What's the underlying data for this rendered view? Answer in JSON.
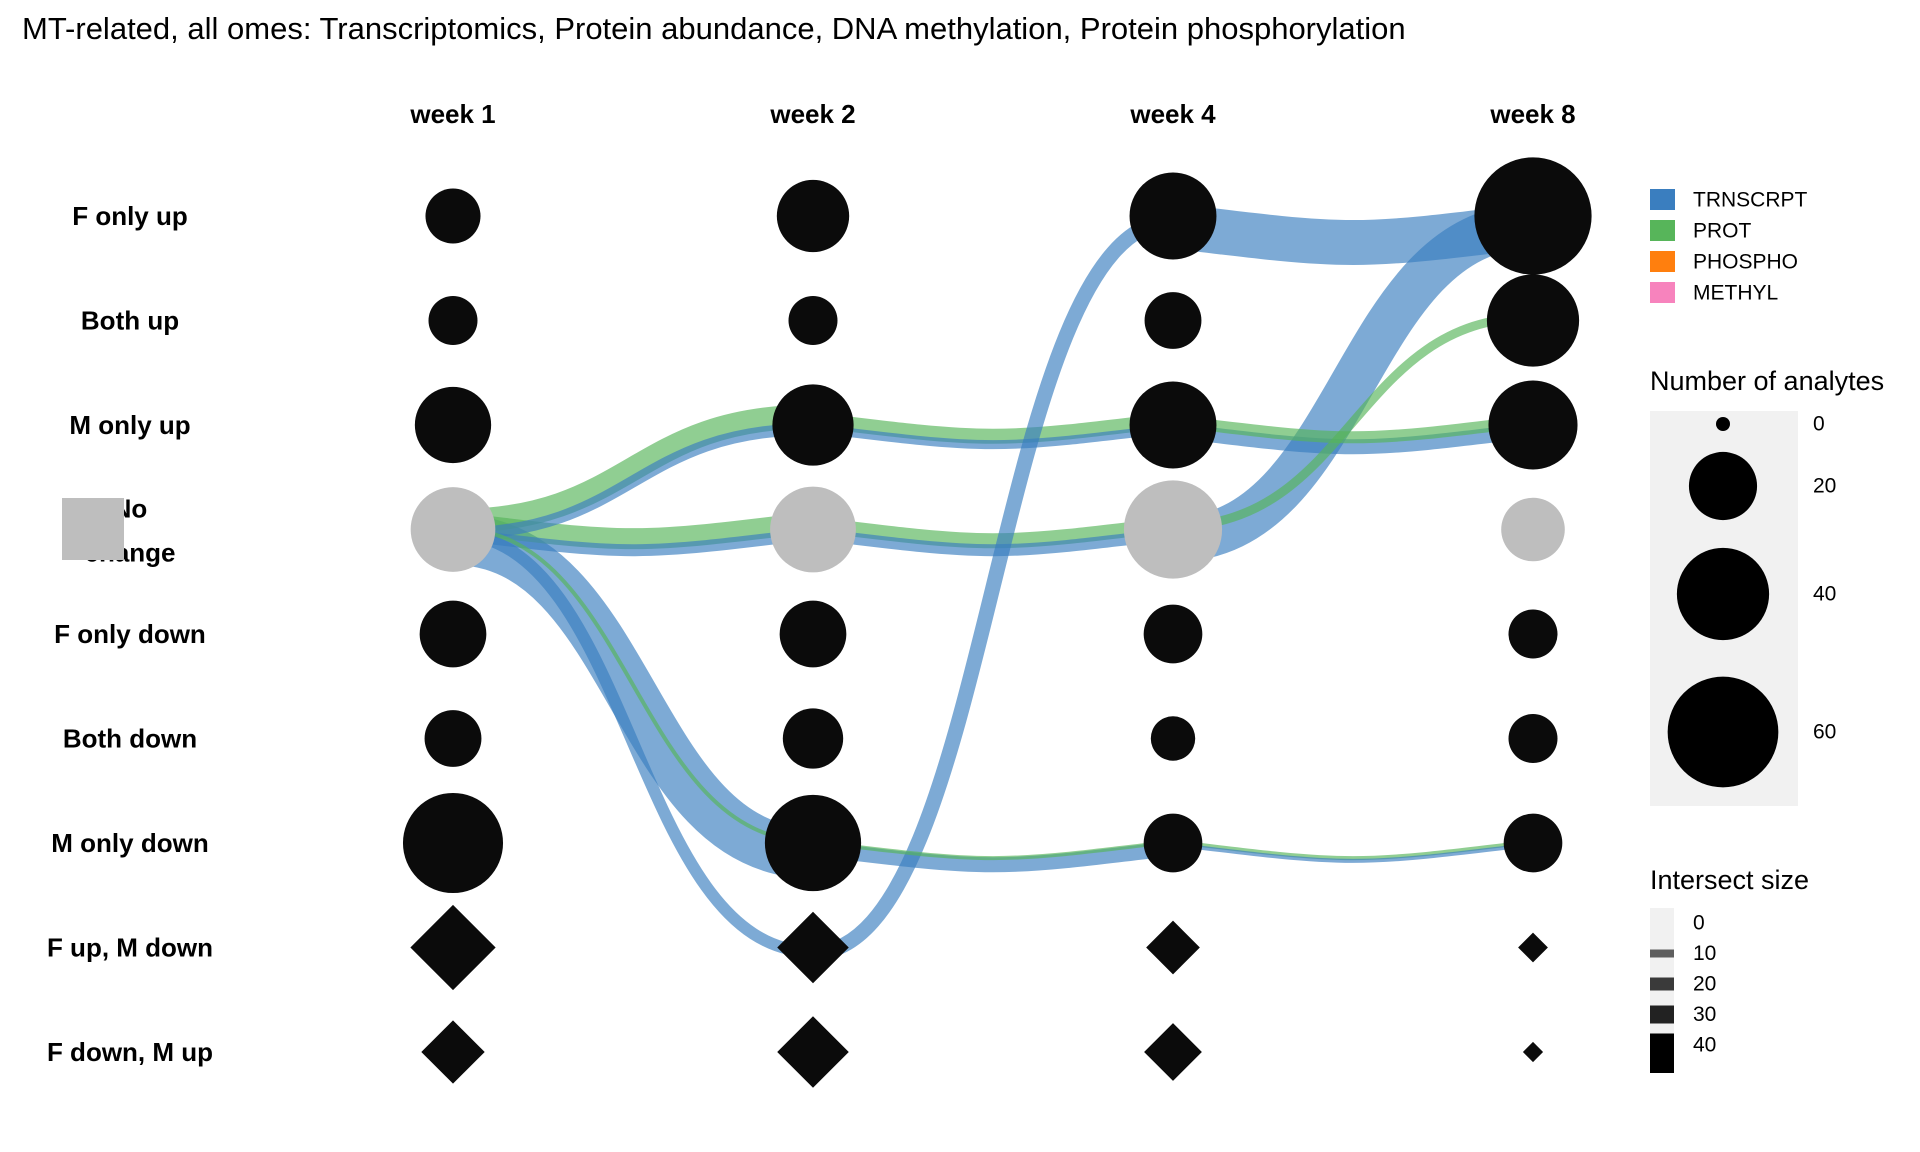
{
  "chart_data": {
    "type": "sankey-dot",
    "title": "MT-related, all omes: Transcriptomics, Protein abundance, DNA methylation, Protein phosphorylation",
    "columns": [
      "week 1",
      "week 2",
      "week 4",
      "week 8"
    ],
    "rows": [
      "F only up",
      "Both up",
      "M only up",
      "No change",
      "F only down",
      "Both down",
      "M only down",
      "F up, M down",
      "F down, M up"
    ],
    "row_label_lines": [
      [
        "F only up"
      ],
      [
        "Both up"
      ],
      [
        "M only up"
      ],
      [
        "No",
        "change"
      ],
      [
        "F only down"
      ],
      [
        "Both down"
      ],
      [
        "M only down"
      ],
      [
        "F up, M down"
      ],
      [
        "F down, M up"
      ]
    ],
    "node_values": [
      [
        12,
        23,
        35,
        68
      ],
      [
        9,
        9,
        13,
        40
      ],
      [
        26,
        30,
        35,
        37
      ],
      [
        33,
        34,
        46,
        17
      ],
      [
        19,
        19,
        14,
        9
      ],
      [
        13,
        15,
        7,
        9
      ],
      [
        48,
        44,
        14,
        14
      ],
      [
        30,
        20,
        10,
        2
      ],
      [
        15,
        20,
        12,
        0.5
      ]
    ],
    "ome_series": [
      {
        "name": "TRNSCRPT",
        "color": "#3A7EBF"
      },
      {
        "name": "PROT",
        "color": "#57B55A"
      },
      {
        "name": "PHOSPHO",
        "color": "#FF7F0E"
      },
      {
        "name": "METHYL",
        "color": "#F783BD"
      }
    ],
    "flows": [
      {
        "ome": "PROT",
        "from_col": 0,
        "from_row": 3,
        "to_col": 1,
        "to_row": 2,
        "value": 8
      },
      {
        "ome": "TRNSCRPT",
        "from_col": 0,
        "from_row": 3,
        "to_col": 1,
        "to_row": 2,
        "value": 4
      },
      {
        "ome": "PROT",
        "from_col": 0,
        "from_row": 3,
        "to_col": 1,
        "to_row": 3,
        "value": 7
      },
      {
        "ome": "TRNSCRPT",
        "from_col": 0,
        "from_row": 3,
        "to_col": 1,
        "to_row": 3,
        "value": 4
      },
      {
        "ome": "PROT",
        "from_col": 0,
        "from_row": 3,
        "to_col": 1,
        "to_row": 6,
        "value": 1
      },
      {
        "ome": "TRNSCRPT",
        "from_col": 0,
        "from_row": 3,
        "to_col": 1,
        "to_row": 6,
        "value": 17
      },
      {
        "ome": "TRNSCRPT",
        "from_col": 0,
        "from_row": 3,
        "to_col": 1,
        "to_row": 7,
        "value": 4
      },
      {
        "ome": "PROT",
        "from_col": 1,
        "from_row": 2,
        "to_col": 2,
        "to_row": 2,
        "value": 5
      },
      {
        "ome": "TRNSCRPT",
        "from_col": 1,
        "from_row": 2,
        "to_col": 2,
        "to_row": 2,
        "value": 3
      },
      {
        "ome": "PROT",
        "from_col": 1,
        "from_row": 3,
        "to_col": 2,
        "to_row": 3,
        "value": 5
      },
      {
        "ome": "TRNSCRPT",
        "from_col": 1,
        "from_row": 3,
        "to_col": 2,
        "to_row": 3,
        "value": 4
      },
      {
        "ome": "PROT",
        "from_col": 1,
        "from_row": 6,
        "to_col": 2,
        "to_row": 6,
        "value": 1
      },
      {
        "ome": "TRNSCRPT",
        "from_col": 1,
        "from_row": 6,
        "to_col": 2,
        "to_row": 6,
        "value": 5
      },
      {
        "ome": "TRNSCRPT",
        "from_col": 1,
        "from_row": 7,
        "to_col": 2,
        "to_row": 0,
        "value": 5
      },
      {
        "ome": "PROT",
        "from_col": 2,
        "from_row": 2,
        "to_col": 3,
        "to_row": 2,
        "value": 4
      },
      {
        "ome": "TRNSCRPT",
        "from_col": 2,
        "from_row": 2,
        "to_col": 3,
        "to_row": 2,
        "value": 5
      },
      {
        "ome": "PROT",
        "from_col": 2,
        "from_row": 3,
        "to_col": 3,
        "to_row": 1,
        "value": 3
      },
      {
        "ome": "TRNSCRPT",
        "from_col": 2,
        "from_row": 3,
        "to_col": 3,
        "to_row": 0,
        "value": 15
      },
      {
        "ome": "TRNSCRPT",
        "from_col": 2,
        "from_row": 0,
        "to_col": 3,
        "to_row": 0,
        "value": 15
      },
      {
        "ome": "PROT",
        "from_col": 2,
        "from_row": 6,
        "to_col": 3,
        "to_row": 6,
        "value": 1
      },
      {
        "ome": "TRNSCRPT",
        "from_col": 2,
        "from_row": 6,
        "to_col": 3,
        "to_row": 6,
        "value": 1
      }
    ],
    "legends": {
      "ome_items": [
        "TRNSCRPT",
        "PROT",
        "PHOSPHO",
        "METHYL"
      ],
      "size_title": "Number of analytes",
      "size_ticks": [
        0,
        20,
        40,
        60
      ],
      "intersect_title": "Intersect size",
      "intersect_ticks": [
        0,
        10,
        20,
        30,
        40
      ]
    },
    "colors": {
      "node_fill": "#0B0B0B",
      "no_change_fill": "#BEBEBE",
      "legend_panel": "#F1F1F1"
    }
  }
}
